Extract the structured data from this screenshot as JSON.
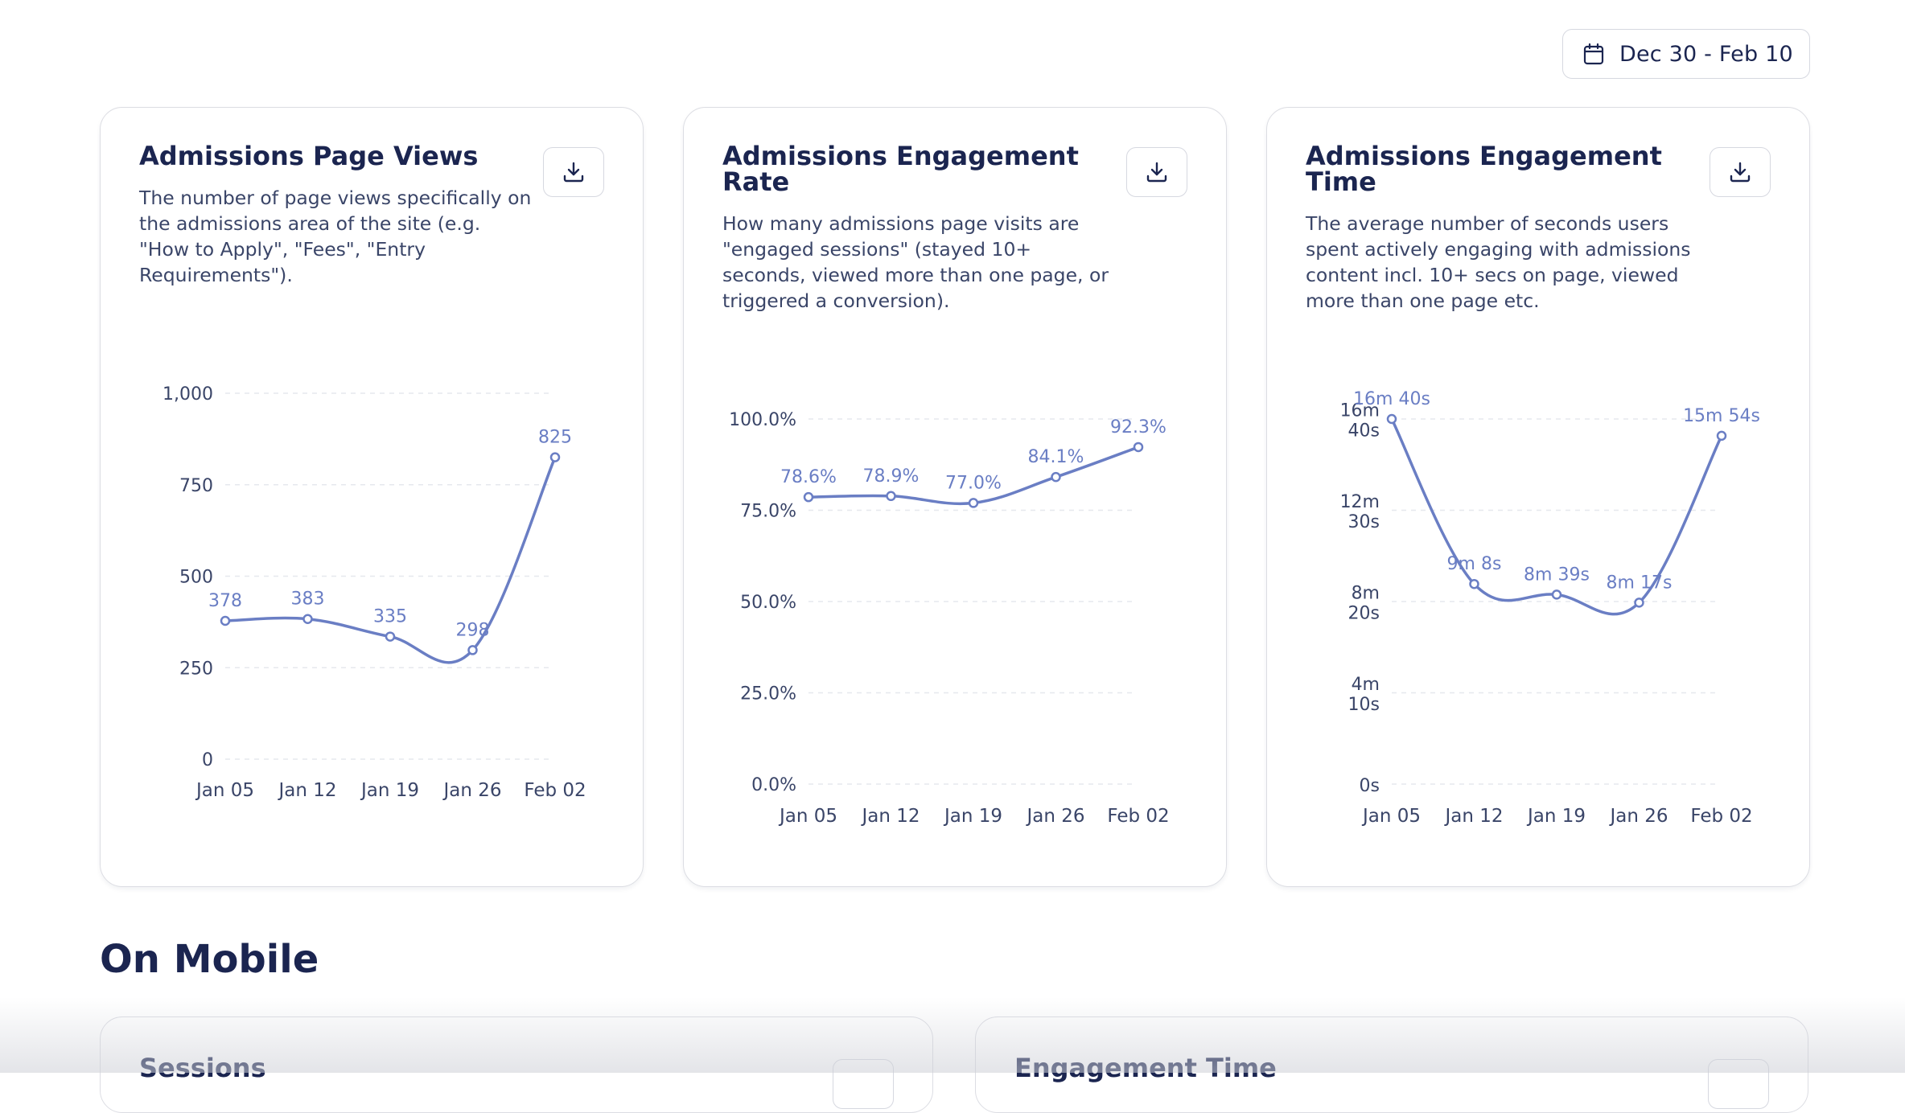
{
  "date_range": {
    "label": "Dec 30 - Feb 10",
    "icon": "calendar-icon"
  },
  "cards": [
    {
      "title": "Admissions Page Views",
      "description": "The number of page views specifically on the admissions area of the site (e.g. \"How to Apply\", \"Fees\", \"Entry Requirements\").",
      "download_icon": "download-icon"
    },
    {
      "title": "Admissions Engagement Rate",
      "description": "How many admissions page visits are \"engaged sessions\" (stayed 10+ seconds, viewed more than one page, or triggered a conversion).",
      "download_icon": "download-icon"
    },
    {
      "title": "Admissions Engagement Time",
      "description": "The average number of seconds users spent actively engaging with admissions content incl. 10+ secs on page, viewed more than one page etc.",
      "download_icon": "download-icon"
    }
  ],
  "chart_data": [
    {
      "type": "line",
      "title": "",
      "x": [
        "Jan 05",
        "Jan 12",
        "Jan 19",
        "Jan 26",
        "Feb 02"
      ],
      "series": [
        {
          "values": [
            378,
            383,
            335,
            298,
            825
          ],
          "labels": [
            "378",
            "383",
            "335",
            "298",
            "825"
          ]
        }
      ],
      "ylim": [
        0,
        1000
      ],
      "yticks": [
        0,
        250,
        500,
        750,
        1000
      ],
      "ytick_labels": [
        "0",
        "250",
        "500",
        "750",
        "1,000"
      ],
      "grid": true,
      "color": "#6a7ec4"
    },
    {
      "type": "line",
      "title": "",
      "x": [
        "Jan 05",
        "Jan 12",
        "Jan 19",
        "Jan 26",
        "Feb 02"
      ],
      "series": [
        {
          "values": [
            78.6,
            78.9,
            77.0,
            84.1,
            92.3
          ],
          "labels": [
            "78.6%",
            "78.9%",
            "77.0%",
            "84.1%",
            "92.3%"
          ]
        }
      ],
      "ylim": [
        0,
        100
      ],
      "yticks": [
        0,
        25,
        50,
        75,
        100
      ],
      "ytick_labels": [
        "0.0%",
        "25.0%",
        "50.0%",
        "75.0%",
        "100.0%"
      ],
      "grid": true,
      "color": "#6a7ec4"
    },
    {
      "type": "line",
      "title": "",
      "x": [
        "Jan 05",
        "Jan 12",
        "Jan 19",
        "Jan 26",
        "Feb 02"
      ],
      "series": [
        {
          "values": [
            1000,
            548,
            519,
            497,
            954
          ],
          "labels": [
            "16m 40s",
            "9m 8s",
            "8m 39s",
            "8m 17s",
            "15m 54s"
          ]
        }
      ],
      "ylim": [
        0,
        1000
      ],
      "yticks": [
        0,
        250,
        500,
        750,
        1000
      ],
      "ytick_labels": [
        [
          "0s"
        ],
        [
          "4m",
          "10s"
        ],
        [
          "8m",
          "20s"
        ],
        [
          "12m",
          "30s"
        ],
        [
          "16m",
          "40s"
        ]
      ],
      "grid": true,
      "color": "#6a7ec4"
    }
  ],
  "section": {
    "title": "On Mobile"
  },
  "mini_cards": [
    {
      "title": "Sessions"
    },
    {
      "title": "Engagement Time"
    }
  ]
}
